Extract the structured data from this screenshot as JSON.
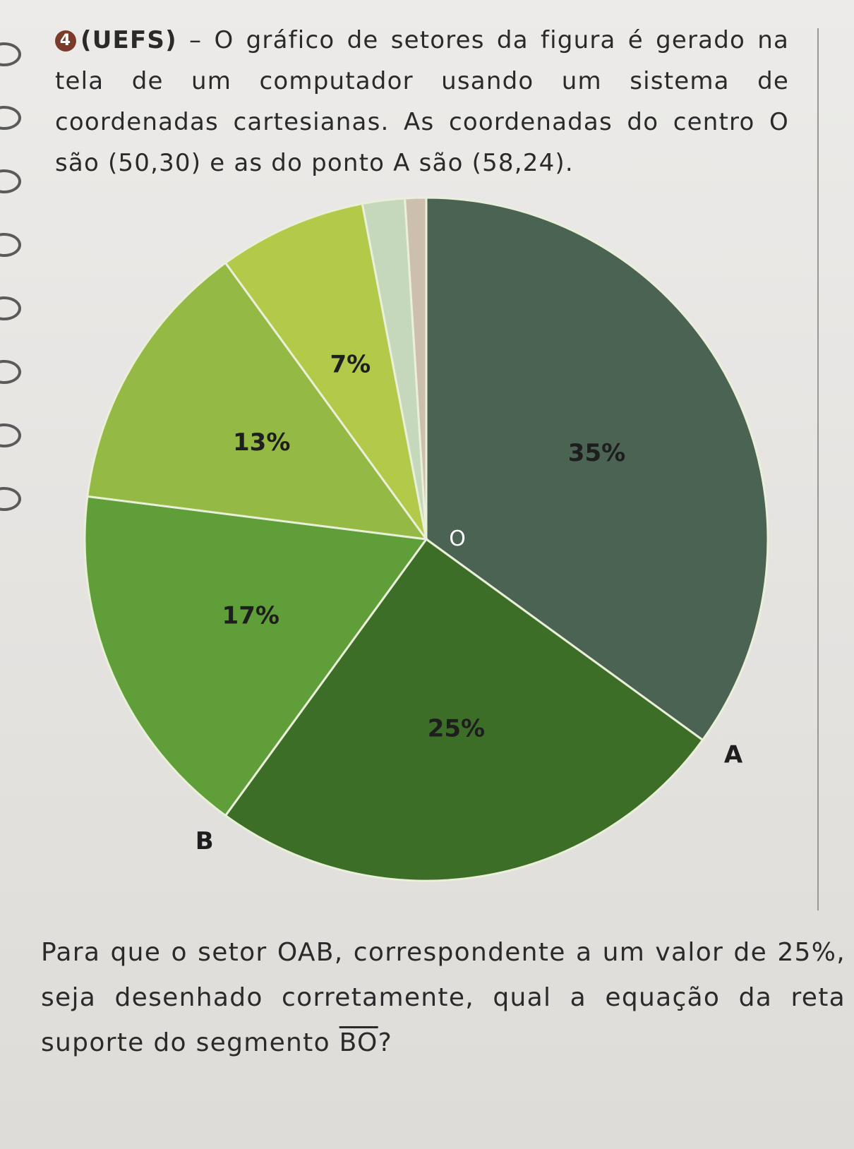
{
  "question": {
    "number": "4",
    "source": "(UEFS)",
    "text": " – O gráfico de setores da figura é gerado na tela de um computador usando um sistema de coordenadas cartesianas. As coordenadas do centro O são (50,30) e as do ponto A são (58,24)."
  },
  "chart_data": {
    "type": "pie",
    "center_label": "O",
    "point_labels": {
      "A": "A",
      "B": "B"
    },
    "slices": [
      {
        "value": 35,
        "label": "35%",
        "color": "#4a6353"
      },
      {
        "value": 25,
        "label": "25%",
        "color": "#3d6e28"
      },
      {
        "value": 17,
        "label": "17%",
        "color": "#5f9e38"
      },
      {
        "value": 13,
        "label": "13%",
        "color": "#94ba45"
      },
      {
        "value": 7,
        "label": "7%",
        "color": "#b3c94a"
      },
      {
        "value": 2,
        "label": "",
        "color": "#c6d8bb"
      },
      {
        "value": 1,
        "label": "",
        "color": "#cdbfae"
      }
    ]
  },
  "footer": {
    "text_before": "Para que o setor OAB, correspondente a um valor de 25%, seja desenhado corretamente, qual a equação da reta suporte do segmento ",
    "segment": "BO",
    "text_after": "?"
  }
}
